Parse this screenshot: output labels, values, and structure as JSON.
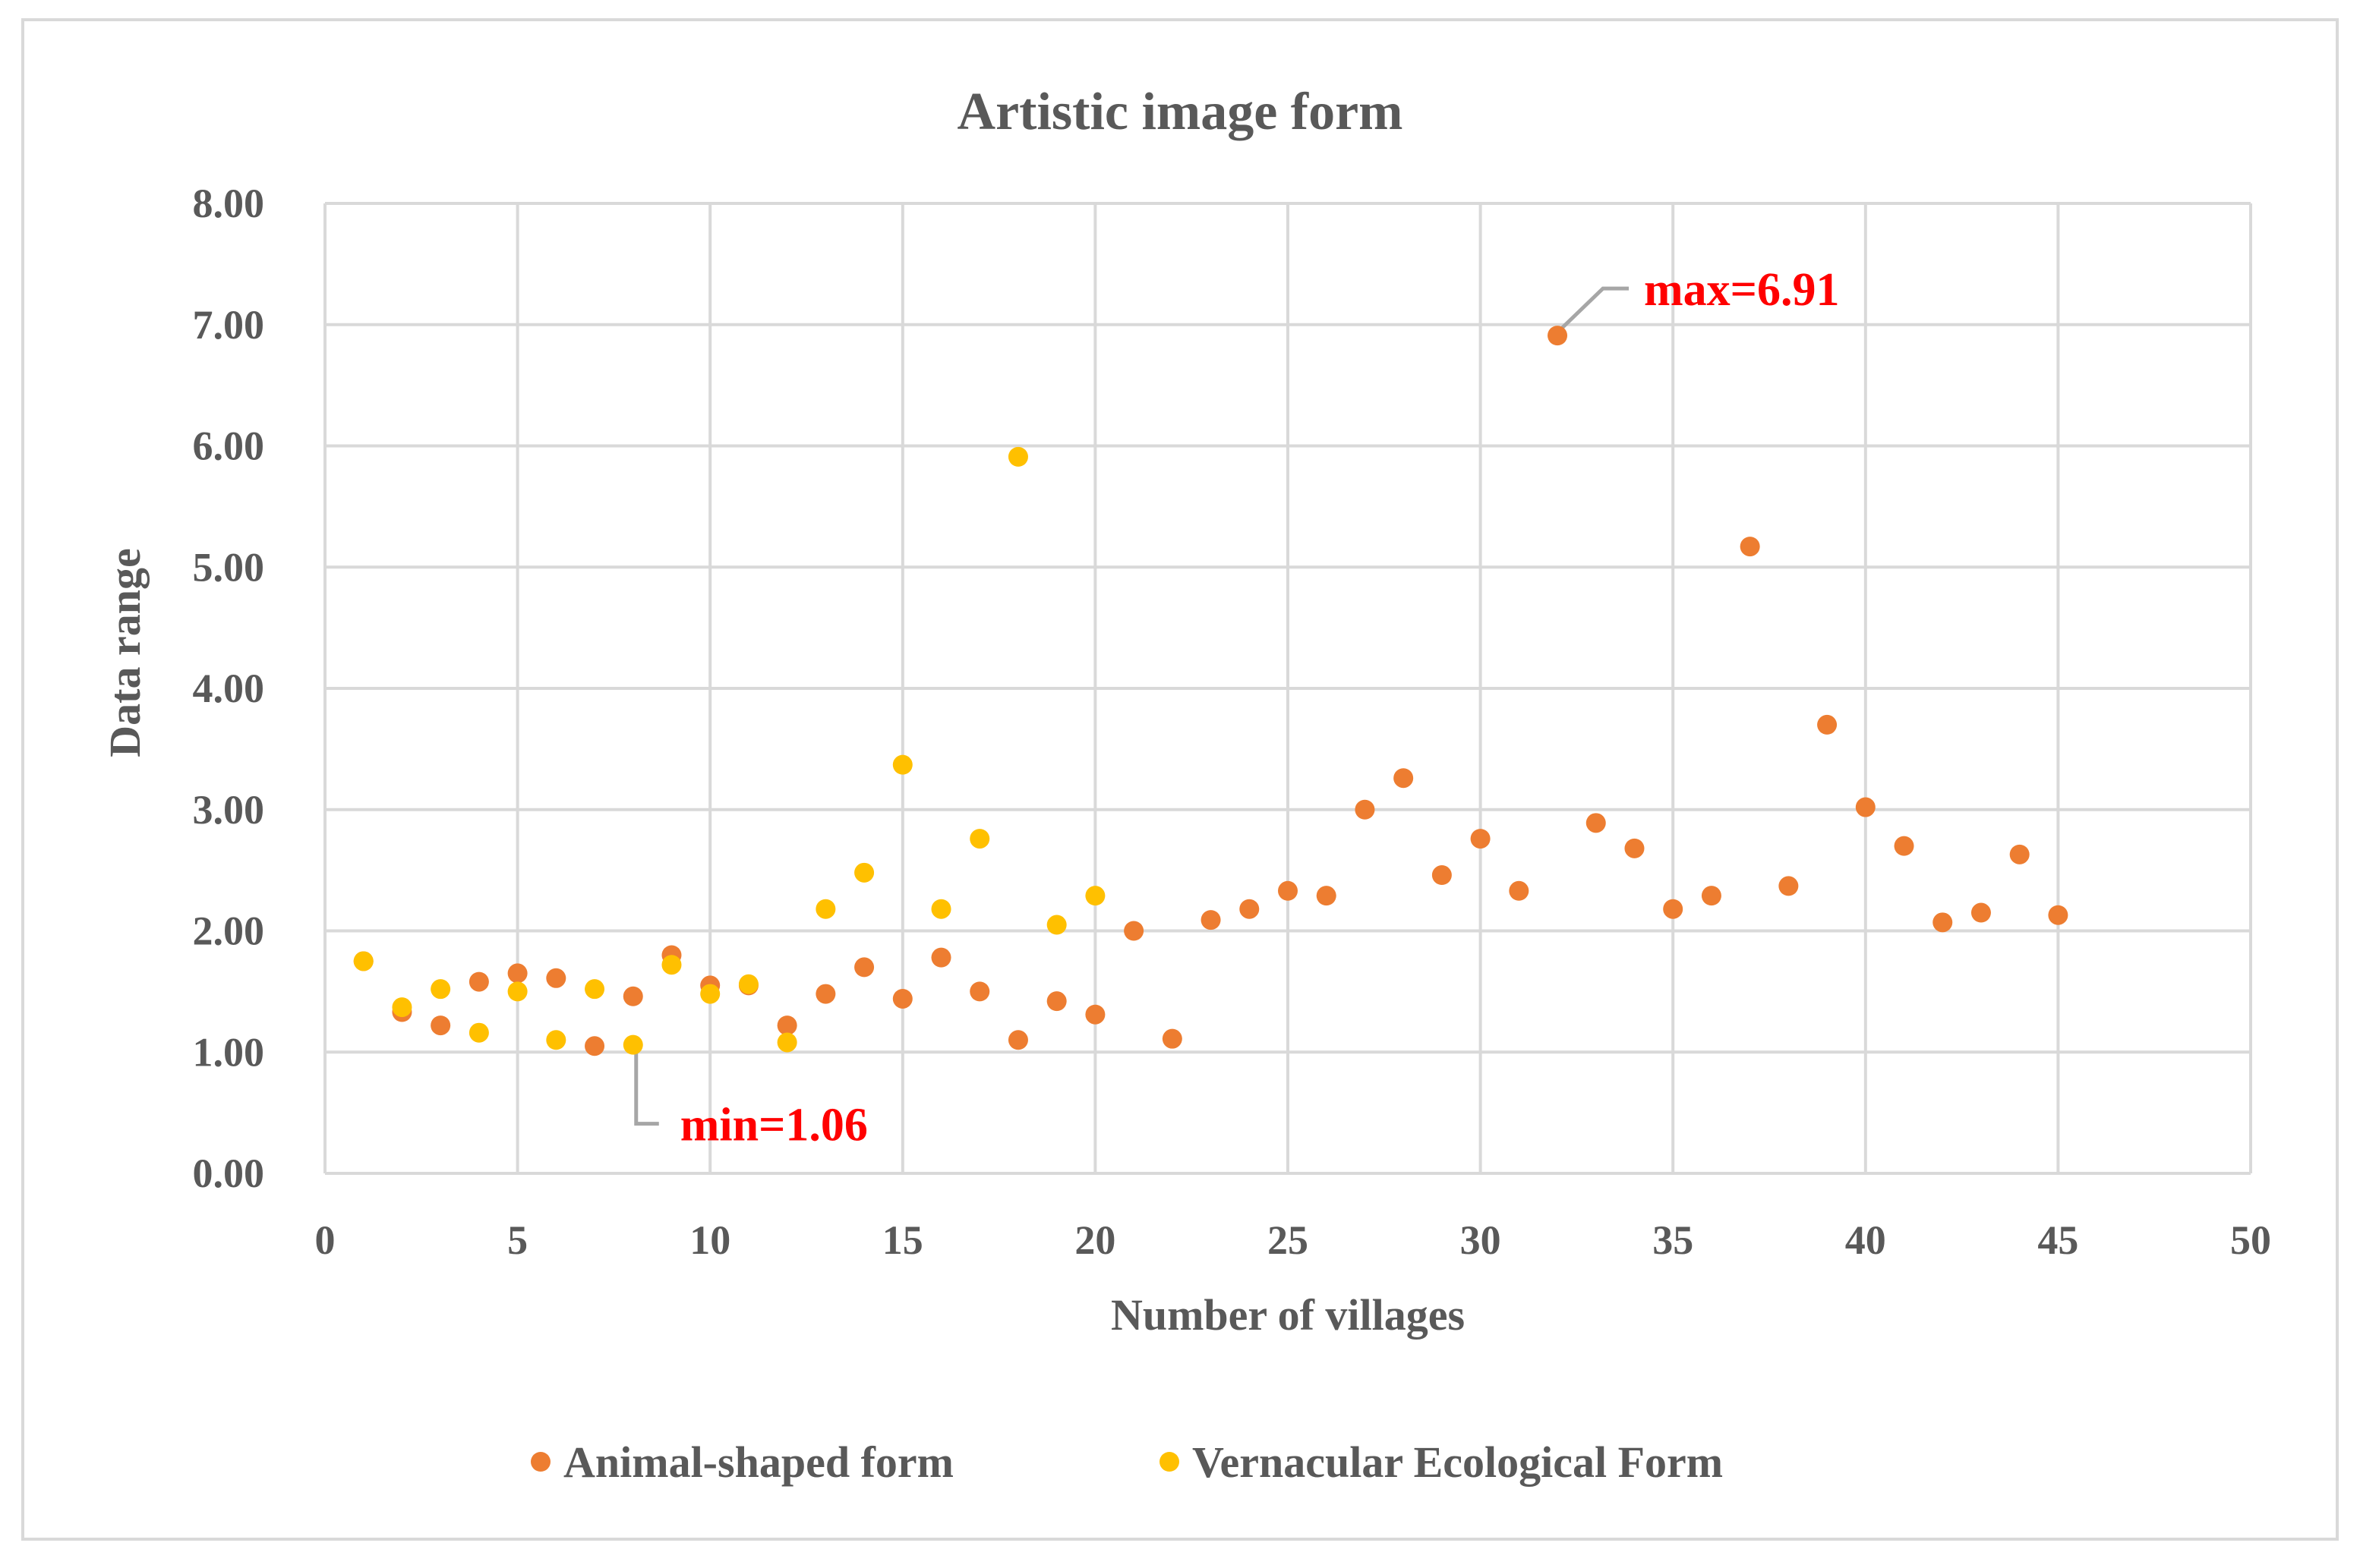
{
  "chart_data": {
    "type": "scatter",
    "title": "Artistic image form",
    "xlabel": "Number of villages",
    "ylabel": "Data range",
    "xlim": [
      0,
      50
    ],
    "ylim": [
      0,
      8
    ],
    "x_ticks": [
      "0",
      "5",
      "10",
      "15",
      "20",
      "25",
      "30",
      "35",
      "40",
      "45",
      "50"
    ],
    "y_ticks": [
      "0.00",
      "1.00",
      "2.00",
      "3.00",
      "4.00",
      "5.00",
      "6.00",
      "7.00",
      "8.00"
    ],
    "grid": true,
    "legend_position": "bottom",
    "series": [
      {
        "name": "Animal-shaped form",
        "color": "#ed7d31",
        "x": [
          1,
          2,
          3,
          4,
          5,
          6,
          7,
          8,
          9,
          10,
          11,
          12,
          13,
          14,
          15,
          16,
          17,
          18,
          19,
          20,
          21,
          22,
          23,
          24,
          25,
          26,
          27,
          28,
          29,
          30,
          31,
          32,
          33,
          34,
          35,
          36,
          37,
          38,
          39,
          40,
          41,
          42,
          43,
          44,
          45
        ],
        "y": [
          1.75,
          1.33,
          1.22,
          1.58,
          1.65,
          1.61,
          1.05,
          1.46,
          1.8,
          1.55,
          1.55,
          1.22,
          1.48,
          1.7,
          1.44,
          1.78,
          1.5,
          1.1,
          1.42,
          1.31,
          2.0,
          1.11,
          2.09,
          2.18,
          2.33,
          2.29,
          3.0,
          3.26,
          2.46,
          2.76,
          2.33,
          6.91,
          2.89,
          2.68,
          2.18,
          2.29,
          5.17,
          2.37,
          3.7,
          3.02,
          2.7,
          2.07,
          2.15,
          2.63,
          2.13
        ]
      },
      {
        "name": "Vernacular Ecological Form",
        "color": "#ffc000",
        "x": [
          1,
          2,
          3,
          4,
          5,
          6,
          7,
          8,
          9,
          10,
          11,
          12,
          13,
          14,
          15,
          16,
          17,
          18,
          19,
          20
        ],
        "y": [
          1.75,
          1.37,
          1.52,
          1.16,
          1.5,
          1.1,
          1.52,
          1.06,
          1.72,
          1.48,
          1.56,
          1.08,
          2.18,
          2.48,
          3.37,
          2.18,
          2.76,
          5.91,
          2.05,
          2.29
        ]
      }
    ],
    "annotations": [
      {
        "label": "max=6.91",
        "x": 32,
        "y": 6.91
      },
      {
        "label": "min=1.06",
        "x": 8,
        "y": 1.06
      }
    ]
  }
}
